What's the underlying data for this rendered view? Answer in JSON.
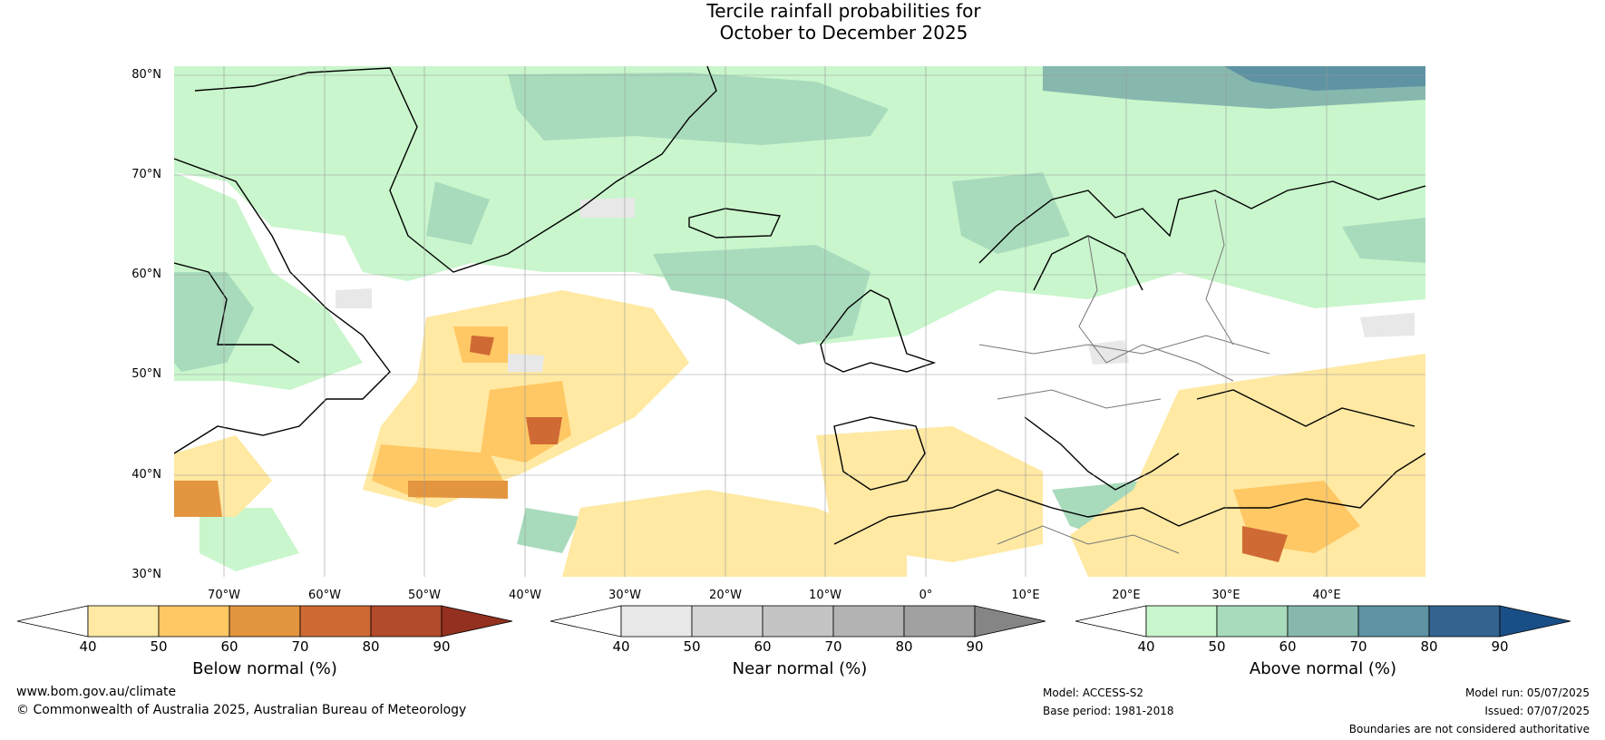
{
  "title": {
    "line1": "Tercile rainfall probabilities for",
    "line2": "October to December 2025"
  },
  "map": {
    "lat_labels": [
      "80°N",
      "70°N",
      "60°N",
      "50°N",
      "40°N",
      "30°N"
    ],
    "lon_labels": [
      "70°W",
      "60°W",
      "50°W",
      "40°W",
      "30°W",
      "20°W",
      "10°W",
      "0°",
      "10°E",
      "20°E",
      "30°E",
      "40°E"
    ]
  },
  "colorbars": {
    "below": {
      "label": "Below normal (%)",
      "ticks": [
        "40",
        "50",
        "60",
        "70",
        "80",
        "90"
      ],
      "colors": [
        "#ffffff",
        "#ffe9a3",
        "#ffc864",
        "#e39540",
        "#cf6a35",
        "#b24a2c",
        "#93301f"
      ]
    },
    "near": {
      "label": "Near normal (%)",
      "ticks": [
        "40",
        "50",
        "60",
        "70",
        "80",
        "90"
      ],
      "colors": [
        "#ffffff",
        "#e8e8e8",
        "#d5d5d5",
        "#c4c4c4",
        "#b3b3b3",
        "#a1a1a1",
        "#858585"
      ]
    },
    "above": {
      "label": "Above normal (%)",
      "ticks": [
        "40",
        "50",
        "60",
        "70",
        "80",
        "90"
      ],
      "colors": [
        "#ffffff",
        "#c9f6cc",
        "#a8dbbc",
        "#87b8ae",
        "#5d93a3",
        "#33648f",
        "#1a4e86"
      ]
    }
  },
  "footer": {
    "website": "www.bom.gov.au/climate",
    "copyright": "© Commonwealth of Australia 2025, Australian Bureau of Meteorology",
    "model": "Model: ACCESS-S2",
    "base_period": "Base period: 1981-2018",
    "model_run": "Model run: 05/07/2025",
    "issued": "Issued: 07/07/2025",
    "disclaimer": "Boundaries are not considered authoritative"
  }
}
